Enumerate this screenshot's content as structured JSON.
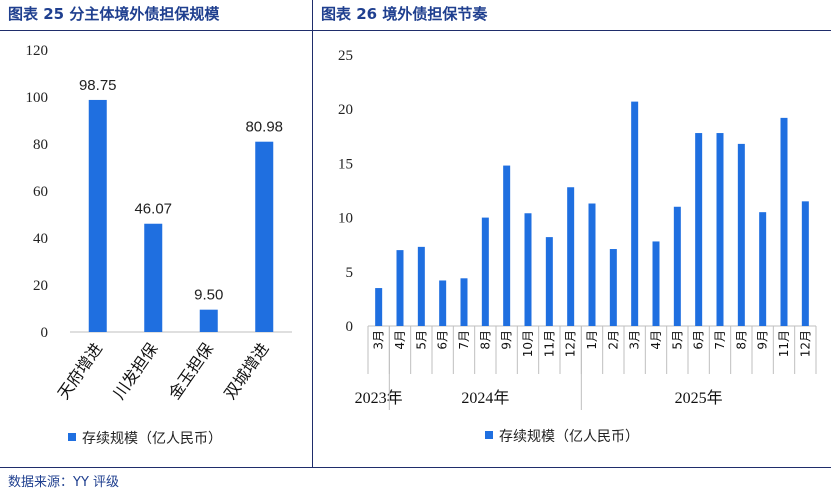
{
  "source": "数据来源：YY 评级",
  "colors": {
    "bar": "#1f6fe0",
    "title": "#1f3f8f",
    "axis": "#bfbfbf"
  },
  "chart_data": [
    {
      "type": "bar",
      "title": "图表 25 分主体境外债担保规模",
      "categories": [
        "天府增进",
        "川发担保",
        "金玉担保",
        "双城增进"
      ],
      "values": [
        98.75,
        46.07,
        9.5,
        80.98
      ],
      "value_labels": [
        "98.75",
        "46.07",
        "9.50",
        "80.98"
      ],
      "ylim": [
        0,
        120
      ],
      "yticks": [
        0,
        20,
        40,
        60,
        80,
        100,
        120
      ],
      "xlabel": "",
      "ylabel": "",
      "legend": "存续规模（亿人民币）",
      "grid": false
    },
    {
      "type": "bar",
      "title": "图表 26 境外债担保节奏",
      "categories": [
        "3月",
        "4月",
        "5月",
        "6月",
        "7月",
        "8月",
        "9月",
        "10月",
        "11月",
        "12月",
        "1月",
        "2月",
        "3月",
        "4月",
        "5月",
        "6月",
        "7月",
        "8月",
        "9月",
        "11月",
        "12月"
      ],
      "values": [
        3.5,
        7,
        7.3,
        4.2,
        4.4,
        10,
        14.8,
        10.4,
        8.2,
        12.8,
        11.3,
        7.1,
        20.7,
        7.8,
        11,
        17.8,
        17.8,
        16.8,
        10.5,
        19.2,
        11.5
      ],
      "groups": [
        {
          "label": "2023年",
          "count": 1
        },
        {
          "label": "2024年",
          "count": 9
        },
        {
          "label": "2025年",
          "count": 11
        }
      ],
      "ylim": [
        0,
        25
      ],
      "yticks": [
        0,
        5,
        10,
        15,
        20,
        25
      ],
      "xlabel": "",
      "ylabel": "",
      "legend": "存续规模（亿人民币）",
      "grid": false
    }
  ]
}
